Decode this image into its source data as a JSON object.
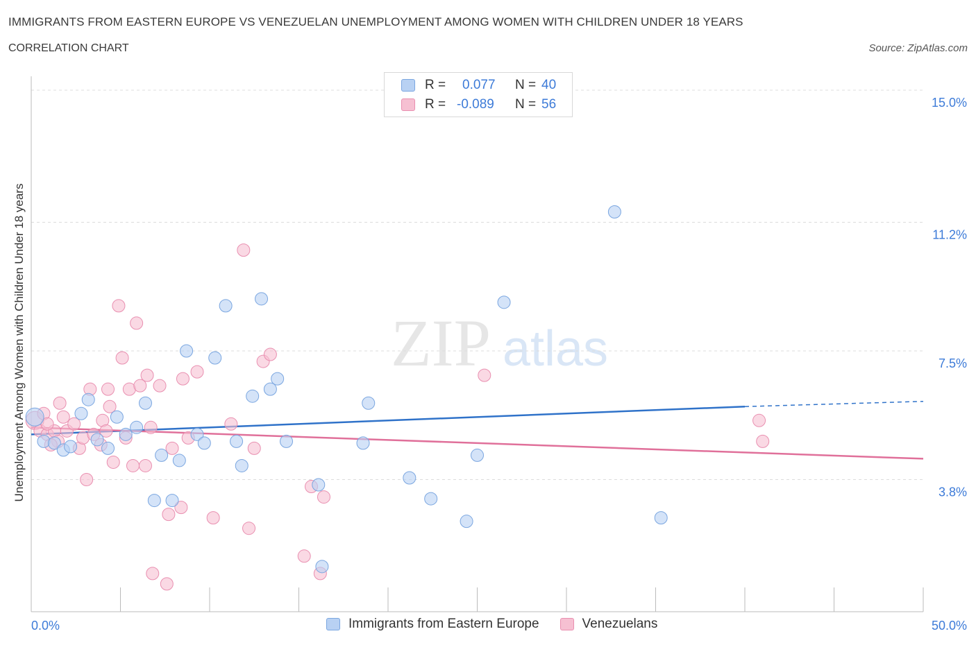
{
  "header": {
    "title": "IMMIGRANTS FROM EASTERN EUROPE VS VENEZUELAN UNEMPLOYMENT AMONG WOMEN WITH CHILDREN UNDER 18 YEARS",
    "subtitle": "CORRELATION CHART",
    "source": "Source: ZipAtlas.com"
  },
  "watermark": {
    "zip": "ZIP",
    "atlas": "atlas"
  },
  "legend": {
    "rows": [
      {
        "r_label": "R =",
        "r_value": "0.077",
        "n_label": "N =",
        "n_value": "40"
      },
      {
        "r_label": "R =",
        "r_value": "-0.089",
        "n_label": "N =",
        "n_value": "56"
      }
    ]
  },
  "colors": {
    "blue_fill": "#b8d1f3",
    "blue_stroke": "#7aa6e0",
    "blue_line": "#2f72c9",
    "pink_fill": "#f6c0d2",
    "pink_stroke": "#e98fb0",
    "pink_line": "#e0709a",
    "accent_text": "#3d7bd8"
  },
  "chart_data": {
    "type": "scatter",
    "title": "IMMIGRANTS FROM EASTERN EUROPE VS VENEZUELAN UNEMPLOYMENT AMONG WOMEN WITH CHILDREN UNDER 18 YEARS",
    "xlabel": "",
    "ylabel": "Unemployment Among Women with Children Under 18 years",
    "xlim": [
      0,
      50
    ],
    "ylim": [
      0,
      15.4
    ],
    "x_tick_labels": [
      "0.0%",
      "50.0%"
    ],
    "y_ticks": [
      3.8,
      7.5,
      11.2,
      15.0
    ],
    "y_tick_labels": [
      "3.8%",
      "7.5%",
      "11.2%",
      "15.0%"
    ],
    "grid": true,
    "legend_position": "bottom",
    "series": [
      {
        "name": "Immigrants from Eastern Europe",
        "color": "#b8d1f3",
        "trend": {
          "x": [
            0,
            40
          ],
          "y": [
            5.1,
            5.9
          ],
          "dashed_to": [
            50,
            6.05
          ]
        },
        "points": [
          [
            0.2,
            5.6
          ],
          [
            0.7,
            4.9
          ],
          [
            1.3,
            4.85
          ],
          [
            1.8,
            4.65
          ],
          [
            2.2,
            4.75
          ],
          [
            2.8,
            5.7
          ],
          [
            3.2,
            6.1
          ],
          [
            3.7,
            4.95
          ],
          [
            4.3,
            4.7
          ],
          [
            4.8,
            5.6
          ],
          [
            5.3,
            5.1
          ],
          [
            5.9,
            5.3
          ],
          [
            6.4,
            6.0
          ],
          [
            6.9,
            3.2
          ],
          [
            7.3,
            4.5
          ],
          [
            7.9,
            3.2
          ],
          [
            8.3,
            4.35
          ],
          [
            8.7,
            7.5
          ],
          [
            9.3,
            5.1
          ],
          [
            9.7,
            4.85
          ],
          [
            10.3,
            7.3
          ],
          [
            10.9,
            8.8
          ],
          [
            11.5,
            4.9
          ],
          [
            11.8,
            4.2
          ],
          [
            12.4,
            6.2
          ],
          [
            12.9,
            9.0
          ],
          [
            13.4,
            6.4
          ],
          [
            13.8,
            6.7
          ],
          [
            14.3,
            4.9
          ],
          [
            16.1,
            3.65
          ],
          [
            16.3,
            1.3
          ],
          [
            18.6,
            4.85
          ],
          [
            18.9,
            6.0
          ],
          [
            21.2,
            3.85
          ],
          [
            22.4,
            3.25
          ],
          [
            24.4,
            2.6
          ],
          [
            25.0,
            4.5
          ],
          [
            26.5,
            8.9
          ],
          [
            32.7,
            11.5
          ],
          [
            35.3,
            2.7
          ]
        ]
      },
      {
        "name": "Venezuelans",
        "color": "#f6c0d2",
        "trend": {
          "x": [
            0,
            50
          ],
          "y": [
            5.3,
            4.4
          ]
        },
        "points": [
          [
            0.2,
            5.5
          ],
          [
            0.5,
            5.2
          ],
          [
            0.7,
            5.7
          ],
          [
            0.9,
            5.1
          ],
          [
            1.3,
            5.2
          ],
          [
            1.5,
            4.9
          ],
          [
            1.6,
            6.0
          ],
          [
            1.8,
            5.6
          ],
          [
            2.0,
            5.2
          ],
          [
            2.4,
            5.4
          ],
          [
            2.7,
            4.7
          ],
          [
            2.9,
            5.0
          ],
          [
            3.1,
            3.8
          ],
          [
            3.3,
            6.4
          ],
          [
            3.5,
            5.1
          ],
          [
            3.9,
            4.8
          ],
          [
            4.0,
            5.5
          ],
          [
            4.2,
            5.2
          ],
          [
            4.3,
            6.4
          ],
          [
            4.4,
            5.9
          ],
          [
            4.6,
            4.3
          ],
          [
            4.9,
            8.8
          ],
          [
            5.1,
            7.3
          ],
          [
            5.3,
            5.0
          ],
          [
            5.5,
            6.4
          ],
          [
            5.7,
            4.2
          ],
          [
            5.9,
            8.3
          ],
          [
            6.1,
            6.5
          ],
          [
            6.4,
            4.2
          ],
          [
            6.5,
            6.8
          ],
          [
            6.7,
            5.3
          ],
          [
            6.8,
            1.1
          ],
          [
            7.2,
            6.5
          ],
          [
            7.6,
            0.8
          ],
          [
            7.7,
            2.8
          ],
          [
            7.9,
            4.7
          ],
          [
            8.4,
            3.0
          ],
          [
            8.5,
            6.7
          ],
          [
            8.8,
            5.0
          ],
          [
            9.3,
            6.9
          ],
          [
            10.2,
            2.7
          ],
          [
            11.2,
            5.4
          ],
          [
            11.9,
            10.4
          ],
          [
            12.2,
            2.4
          ],
          [
            12.5,
            4.7
          ],
          [
            13.0,
            7.2
          ],
          [
            13.4,
            7.4
          ],
          [
            15.3,
            1.6
          ],
          [
            15.7,
            3.6
          ],
          [
            16.2,
            1.1
          ],
          [
            16.4,
            3.3
          ],
          [
            25.4,
            6.8
          ],
          [
            40.8,
            5.5
          ],
          [
            41.0,
            4.9
          ],
          [
            0.9,
            5.4
          ],
          [
            1.1,
            4.8
          ]
        ]
      }
    ]
  },
  "bottom_legend": {
    "items": [
      {
        "label": "Immigrants from Eastern Europe"
      },
      {
        "label": "Venezuelans"
      }
    ]
  }
}
